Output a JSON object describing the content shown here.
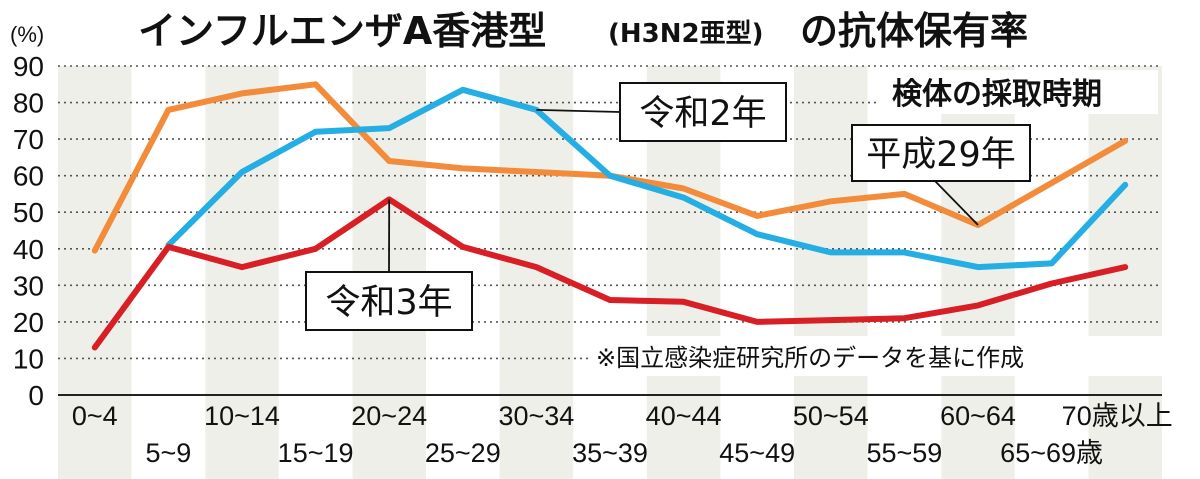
{
  "chart_data": {
    "type": "line",
    "title": "インフルエンザA香港型",
    "title_sub": "(H3N2亜型)",
    "title_tail": "の抗体保有率",
    "ylabel": "(%)",
    "legend_title": "検体の採取時期",
    "note": "※国立感染症研究所のデータを基に作成",
    "ylim": [
      0,
      90
    ],
    "yticks": [
      0,
      10,
      20,
      30,
      40,
      50,
      60,
      70,
      80,
      90
    ],
    "grid": true,
    "categories": [
      "0~4",
      "5~9",
      "10~14",
      "15~19",
      "20~24",
      "25~29",
      "30~34",
      "35~39",
      "40~44",
      "45~49",
      "50~54",
      "55~59",
      "60~64",
      "65~69歳",
      "70歳以上"
    ],
    "series": [
      {
        "name": "平成29年",
        "color": "#f28c3a",
        "values": [
          39.5,
          78,
          82.5,
          85,
          64,
          62,
          61,
          60,
          56.5,
          49,
          53,
          55,
          46.5,
          58,
          69.5
        ]
      },
      {
        "name": "令和2年",
        "color": "#25aee3",
        "values": [
          null,
          41,
          61,
          72,
          73,
          83.5,
          78,
          60,
          54,
          44,
          39,
          39,
          35,
          36,
          57.5
        ]
      },
      {
        "name": "令和3年",
        "color": "#d81f26",
        "values": [
          13,
          40.5,
          35,
          40,
          53.5,
          40.5,
          35,
          26,
          25.5,
          20,
          20.5,
          21,
          24.5,
          30.5,
          35
        ]
      }
    ]
  }
}
